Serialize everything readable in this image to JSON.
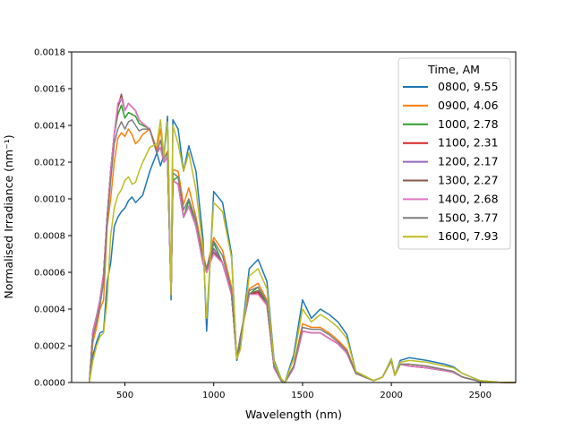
{
  "chart_data": {
    "type": "line",
    "title": "",
    "xlabel": "Wavelength (nm)",
    "ylabel": "Normalised Irradiance (nm⁻¹)",
    "xlim": [
      200,
      2700
    ],
    "ylim": [
      0,
      0.0018
    ],
    "xticks": [
      500,
      1000,
      1500,
      2000,
      2500
    ],
    "yticks": [
      "0.0000",
      "0.0002",
      "0.0004",
      "0.0006",
      "0.0008",
      "0.0010",
      "0.0012",
      "0.0014",
      "0.0016",
      "0.0018"
    ],
    "grid": false,
    "legend": {
      "title": "Time, AM",
      "placement": "top-right"
    },
    "x": [
      300,
      320,
      340,
      360,
      380,
      400,
      420,
      440,
      460,
      480,
      500,
      520,
      540,
      560,
      580,
      600,
      640,
      680,
      700,
      720,
      740,
      760,
      770,
      800,
      830,
      860,
      900,
      940,
      960,
      1000,
      1050,
      1100,
      1130,
      1150,
      1200,
      1250,
      1300,
      1340,
      1380,
      1400,
      1450,
      1500,
      1550,
      1600,
      1650,
      1700,
      1750,
      1800,
      1900,
      1950,
      2000,
      2020,
      2050,
      2100,
      2200,
      2300,
      2350,
      2400,
      2500,
      2600,
      2700
    ],
    "series": [
      {
        "name": "0800, 9.55",
        "color": "#1f77b4",
        "values": [
          0,
          0.00015,
          0.00022,
          0.00027,
          0.00028,
          0.00055,
          0.00065,
          0.00085,
          0.0009,
          0.00093,
          0.00095,
          0.00099,
          0.00101,
          0.00098,
          0.001,
          0.00102,
          0.00115,
          0.00125,
          0.00118,
          0.00124,
          0.00145,
          0.00045,
          0.00143,
          0.00138,
          0.00115,
          0.00129,
          0.00115,
          0.00078,
          0.00028,
          0.00104,
          0.00098,
          0.0007,
          0.00012,
          0.0002,
          0.00062,
          0.00067,
          0.00055,
          0.00012,
          2e-05,
          0,
          0.00015,
          0.00045,
          0.00035,
          0.0004,
          0.00037,
          0.00033,
          0.00026,
          6e-05,
          1e-05,
          3e-05,
          0.00013,
          4e-05,
          0.00012,
          0.000135,
          0.00012,
          0.0001,
          8.5e-05,
          5e-05,
          1e-05,
          2e-06,
          0
        ]
      },
      {
        "name": "0900, 4.06",
        "color": "#ff7f0e",
        "values": [
          0,
          0.00022,
          0.0003,
          0.0004,
          0.00045,
          0.00085,
          0.001,
          0.0012,
          0.00133,
          0.00136,
          0.00134,
          0.00138,
          0.00135,
          0.0013,
          0.00132,
          0.00135,
          0.00138,
          0.00127,
          0.00138,
          0.00122,
          0.00126,
          0.00048,
          0.00116,
          0.00115,
          0.00097,
          0.00106,
          0.0009,
          0.0007,
          0.00062,
          0.00079,
          0.00072,
          0.00052,
          0.00013,
          0.00025,
          0.00051,
          0.00054,
          0.00045,
          9e-05,
          1e-05,
          0,
          9e-05,
          0.00032,
          0.0003,
          0.0003,
          0.00027,
          0.00023,
          0.00018,
          5e-05,
          1e-05,
          3e-05,
          0.00012,
          4e-05,
          0.0001,
          0.0001,
          9e-05,
          7e-05,
          6e-05,
          3e-05,
          5e-06,
          1e-06,
          0
        ]
      },
      {
        "name": "1000, 2.78",
        "color": "#2ca02c",
        "values": [
          0,
          0.00028,
          0.00036,
          0.00045,
          0.00059,
          0.0009,
          0.00115,
          0.00135,
          0.00146,
          0.00151,
          0.00144,
          0.00147,
          0.00146,
          0.00145,
          0.00141,
          0.0014,
          0.00138,
          0.00125,
          0.00128,
          0.0012,
          0.00123,
          0.00048,
          0.0011,
          0.00112,
          0.0009,
          0.00099,
          0.00085,
          0.00065,
          0.0006,
          0.00076,
          0.00065,
          0.00048,
          0.00013,
          0.00025,
          0.00048,
          0.00052,
          0.00042,
          8e-05,
          1e-05,
          0,
          8e-05,
          0.00028,
          0.00027,
          0.00027,
          0.00024,
          0.00021,
          0.00016,
          5e-05,
          1e-05,
          3e-05,
          0.00012,
          4e-05,
          0.0001,
          9e-05,
          8e-05,
          6.5e-05,
          5.5e-05,
          3e-05,
          5e-06,
          1e-06,
          0
        ]
      },
      {
        "name": "1100, 2.31",
        "color": "#d62728",
        "values": [
          0,
          0.00028,
          0.00036,
          0.00045,
          0.00059,
          0.0009,
          0.00115,
          0.00135,
          0.0015,
          0.00155,
          0.00148,
          0.00152,
          0.0015,
          0.00148,
          0.00143,
          0.00141,
          0.00138,
          0.00125,
          0.00128,
          0.0012,
          0.00123,
          0.00048,
          0.0011,
          0.00108,
          0.0009,
          0.00096,
          0.00085,
          0.00065,
          0.0006,
          0.00073,
          0.00065,
          0.00048,
          0.00013,
          0.00025,
          0.00048,
          0.00049,
          0.00042,
          8e-05,
          1e-05,
          0,
          8e-05,
          0.00028,
          0.00027,
          0.00027,
          0.00024,
          0.00021,
          0.00016,
          5e-05,
          1e-05,
          3e-05,
          0.00012,
          4e-05,
          0.0001,
          9e-05,
          8e-05,
          6.5e-05,
          5.5e-05,
          3e-05,
          5e-06,
          1e-06,
          0
        ]
      },
      {
        "name": "1200, 2.17",
        "color": "#9467bd",
        "values": [
          0,
          0.00028,
          0.00036,
          0.00045,
          0.00059,
          0.0009,
          0.00115,
          0.00135,
          0.0015,
          0.00155,
          0.00148,
          0.00152,
          0.0015,
          0.00148,
          0.00143,
          0.00141,
          0.00138,
          0.00125,
          0.00128,
          0.0012,
          0.00123,
          0.00048,
          0.0011,
          0.00108,
          0.0009,
          0.00096,
          0.00085,
          0.00065,
          0.0006,
          0.00073,
          0.00065,
          0.00048,
          0.00013,
          0.00025,
          0.00048,
          0.0005,
          0.00042,
          8e-05,
          1e-05,
          0,
          8e-05,
          0.00028,
          0.00027,
          0.00027,
          0.00024,
          0.00021,
          0.00016,
          5e-05,
          1e-05,
          3e-05,
          0.00012,
          4e-05,
          0.0001,
          9e-05,
          8e-05,
          6.5e-05,
          5.5e-05,
          3e-05,
          5e-06,
          1e-06,
          0
        ]
      },
      {
        "name": "1300, 2.27",
        "color": "#8c564b",
        "values": [
          0,
          0.00028,
          0.00036,
          0.00045,
          0.00059,
          0.0009,
          0.00115,
          0.00135,
          0.0015,
          0.00157,
          0.00148,
          0.00152,
          0.0015,
          0.00148,
          0.00143,
          0.00141,
          0.00138,
          0.00125,
          0.00128,
          0.0012,
          0.00123,
          0.00048,
          0.0011,
          0.00108,
          0.0009,
          0.00096,
          0.00085,
          0.00065,
          0.0006,
          0.00071,
          0.00065,
          0.00048,
          0.00013,
          0.00025,
          0.00048,
          0.0005,
          0.00042,
          8e-05,
          1e-05,
          0,
          8e-05,
          0.00028,
          0.00027,
          0.00027,
          0.00024,
          0.00021,
          0.00016,
          5e-05,
          1e-05,
          3e-05,
          0.00012,
          4e-05,
          0.0001,
          9e-05,
          8e-05,
          6.5e-05,
          5.5e-05,
          3e-05,
          5e-06,
          1e-06,
          0
        ]
      },
      {
        "name": "1400, 2.68",
        "color": "#e377c2",
        "values": [
          0,
          0.00028,
          0.00036,
          0.00045,
          0.00059,
          0.0009,
          0.00115,
          0.00135,
          0.00152,
          0.00155,
          0.00148,
          0.00152,
          0.0015,
          0.00148,
          0.00143,
          0.00141,
          0.00138,
          0.00125,
          0.00128,
          0.0012,
          0.00123,
          0.00048,
          0.0011,
          0.00108,
          0.0009,
          0.00096,
          0.00085,
          0.00065,
          0.0006,
          0.0007,
          0.00065,
          0.00048,
          0.00013,
          0.00025,
          0.00048,
          0.00048,
          0.00042,
          8e-05,
          1e-05,
          0,
          8e-05,
          0.00028,
          0.00027,
          0.00027,
          0.00024,
          0.00021,
          0.00016,
          5e-05,
          1e-05,
          3e-05,
          0.00012,
          4e-05,
          0.0001,
          9e-05,
          8e-05,
          6.5e-05,
          5.5e-05,
          3e-05,
          5e-06,
          1e-06,
          0
        ]
      },
      {
        "name": "1500, 3.77",
        "color": "#7f7f7f",
        "values": [
          0,
          0.00025,
          0.00033,
          0.00042,
          0.00055,
          0.00088,
          0.0011,
          0.0013,
          0.00138,
          0.00142,
          0.00138,
          0.00142,
          0.00143,
          0.0014,
          0.00137,
          0.00138,
          0.00138,
          0.00125,
          0.00132,
          0.00122,
          0.00125,
          0.00048,
          0.00114,
          0.00112,
          0.00094,
          0.001,
          0.00088,
          0.00068,
          0.00062,
          0.00077,
          0.00069,
          0.0005,
          0.00013,
          0.00025,
          0.0005,
          0.00052,
          0.00044,
          9e-05,
          1e-05,
          0,
          9e-05,
          0.0003,
          0.00029,
          0.00029,
          0.00026,
          0.00022,
          0.00017,
          5e-05,
          1e-05,
          3e-05,
          0.00012,
          4e-05,
          0.0001,
          0.0001,
          9e-05,
          7e-05,
          6e-05,
          3e-05,
          5e-06,
          1e-06,
          0
        ]
      },
      {
        "name": "1600, 7.93",
        "color": "#bcbd22",
        "values": [
          0,
          0.00012,
          0.0002,
          0.00025,
          0.00027,
          0.00045,
          0.0008,
          0.00095,
          0.00102,
          0.00105,
          0.0011,
          0.00112,
          0.00108,
          0.00109,
          0.00115,
          0.0012,
          0.00128,
          0.0013,
          0.00143,
          0.00123,
          0.00142,
          0.00048,
          0.0014,
          0.0013,
          0.00115,
          0.00125,
          0.00105,
          0.00073,
          0.00035,
          0.00098,
          0.00093,
          0.00068,
          0.00013,
          0.00018,
          0.00058,
          0.00062,
          0.00051,
          0.00011,
          2e-05,
          0,
          0.00013,
          0.0004,
          0.00033,
          0.00037,
          0.00034,
          0.0003,
          0.00024,
          6e-05,
          1e-05,
          3e-05,
          0.00013,
          4e-05,
          0.00011,
          0.00012,
          0.00011,
          9e-05,
          8e-05,
          5e-05,
          1e-05,
          2e-06,
          0
        ]
      }
    ]
  }
}
